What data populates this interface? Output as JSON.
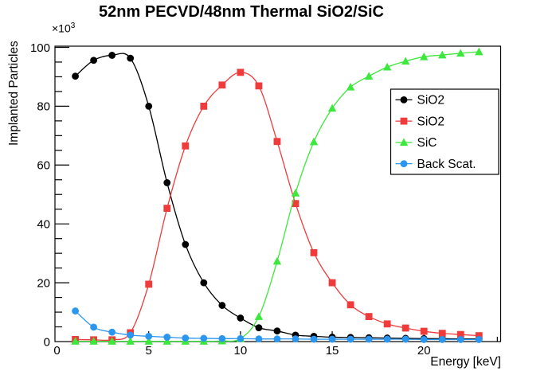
{
  "chart_data": {
    "type": "line",
    "title": "52nm PECVD/48nm Thermal SiO2/SiC",
    "xlabel": "Energy [keV]",
    "ylabel": "Implanted Particles",
    "y_unit_multiplier": "×10^3",
    "grid": false,
    "legend_position": "middle-right",
    "x": [
      1,
      2,
      3,
      4,
      5,
      6,
      7,
      8,
      9,
      10,
      11,
      12,
      13,
      14,
      15,
      16,
      17,
      18,
      19,
      20,
      21,
      22,
      23
    ],
    "series": [
      {
        "id": "sio2-pecvd",
        "label": "SiO2",
        "marker": "circle",
        "color": "#000000",
        "values": [
          90.2,
          95.6,
          97.3,
          96.3,
          80.0,
          54.0,
          33.0,
          20.0,
          12.3,
          8.0,
          4.7,
          3.6,
          2.2,
          1.8,
          1.5,
          1.4,
          1.3,
          1.2,
          1.1,
          1.0,
          1.0,
          0.9,
          0.9
        ]
      },
      {
        "id": "sio2-thermal",
        "label": "SiO2",
        "marker": "square",
        "color": "#ef3b3b",
        "values": [
          0.7,
          0.6,
          0.6,
          3.0,
          19.5,
          45.3,
          66.5,
          80.0,
          87.2,
          91.5,
          86.9,
          68.0,
          46.9,
          30.2,
          20.0,
          12.5,
          8.5,
          6.0,
          4.6,
          3.5,
          2.8,
          2.4,
          2.0
        ]
      },
      {
        "id": "sic",
        "label": "SiC",
        "marker": "triangle-up",
        "color": "#3ce83c",
        "values": [
          0.1,
          0.1,
          0.1,
          0.1,
          0.1,
          0.1,
          0.1,
          0.1,
          0.2,
          1.0,
          8.5,
          27.3,
          50.5,
          67.9,
          79.3,
          86.5,
          90.2,
          93.3,
          95.3,
          96.8,
          97.4,
          98.0,
          98.5
        ]
      },
      {
        "id": "back-scatter",
        "label": "Back Scat.",
        "marker": "circle",
        "color": "#2a96f0",
        "values": [
          10.4,
          4.9,
          3.2,
          2.2,
          1.8,
          1.5,
          1.2,
          1.1,
          1.0,
          1.0,
          0.9,
          0.9,
          0.9,
          0.8,
          0.8,
          0.8,
          0.8,
          0.8,
          0.8,
          0.7,
          0.7,
          0.7,
          0.7
        ]
      }
    ]
  },
  "axes": {
    "x": {
      "title": "Energy [keV]",
      "range": [
        -0.11,
        24.18
      ],
      "major_ticks": [
        0,
        5,
        10,
        15,
        20
      ],
      "minor_tick_step": 1
    },
    "y": {
      "title": "Implanted Particles",
      "range": [
        0,
        100.4
      ],
      "major_ticks": [
        0,
        20,
        40,
        60,
        80,
        100
      ],
      "minor_tick_step": 5,
      "multiplier_base": "×10",
      "multiplier_exp": "3"
    }
  }
}
